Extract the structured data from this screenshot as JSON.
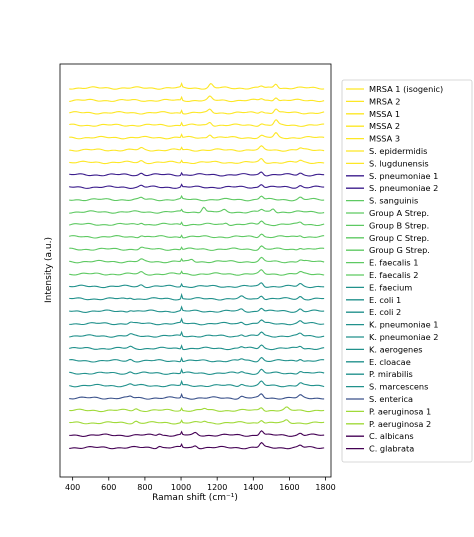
{
  "chart_data": {
    "type": "line",
    "title": "",
    "xlabel": "Raman shift (cm⁻¹)",
    "ylabel": "Intensity (a.u.)",
    "xlim": [
      330,
      1830
    ],
    "xticks": [
      400,
      600,
      800,
      1000,
      1200,
      1400,
      1600,
      1800
    ],
    "ytick_labels": false,
    "grid": false,
    "legend_placement": "right",
    "x_range": [
      381,
      1792
    ],
    "series": [
      {
        "name": "MRSA 1 (isogenic)",
        "color": "#fde725",
        "peaks": [
          [
            1003,
            0.55
          ],
          [
            1165,
            0.65
          ],
          [
            1525,
            0.75
          ],
          [
            1445,
            0.3
          ]
        ]
      },
      {
        "name": "MRSA 2",
        "color": "#fde725",
        "peaks": [
          [
            1003,
            0.5
          ],
          [
            1160,
            0.55
          ],
          [
            1525,
            0.6
          ],
          [
            1445,
            0.3
          ]
        ]
      },
      {
        "name": "MSSA 1",
        "color": "#fde725",
        "peaks": [
          [
            1003,
            0.5
          ],
          [
            1160,
            0.5
          ],
          [
            1525,
            0.7
          ],
          [
            1445,
            0.3
          ]
        ]
      },
      {
        "name": "MSSA 2",
        "color": "#fde725",
        "peaks": [
          [
            1003,
            0.5
          ],
          [
            1160,
            0.55
          ],
          [
            1525,
            0.8
          ],
          [
            1445,
            0.3
          ]
        ]
      },
      {
        "name": "MSSA 3",
        "color": "#fde725",
        "peaks": [
          [
            1003,
            0.5
          ],
          [
            1160,
            0.6
          ],
          [
            1525,
            0.7
          ],
          [
            1445,
            0.3
          ]
        ]
      },
      {
        "name": "S. epidermidis",
        "color": "#fde725",
        "peaks": [
          [
            780,
            0.3
          ],
          [
            1003,
            0.4
          ],
          [
            1445,
            0.5
          ],
          [
            1660,
            0.3
          ]
        ]
      },
      {
        "name": "S. lugdunensis",
        "color": "#fde725",
        "peaks": [
          [
            780,
            0.3
          ],
          [
            1003,
            0.4
          ],
          [
            1445,
            0.55
          ],
          [
            1660,
            0.3
          ]
        ]
      },
      {
        "name": "S. pneumoniae 1",
        "color": "#3b1c8c",
        "peaks": [
          [
            780,
            0.3
          ],
          [
            1003,
            0.4
          ],
          [
            1445,
            0.55
          ],
          [
            1660,
            0.3
          ]
        ]
      },
      {
        "name": "S. pneumoniae 2",
        "color": "#3b1c8c",
        "peaks": [
          [
            780,
            0.3
          ],
          [
            1003,
            0.4
          ],
          [
            1445,
            0.55
          ],
          [
            1660,
            0.3
          ]
        ]
      },
      {
        "name": "S. sanguinis",
        "color": "#5ec962",
        "peaks": [
          [
            780,
            0.3
          ],
          [
            1003,
            0.4
          ],
          [
            1445,
            0.6
          ],
          [
            1660,
            0.35
          ]
        ]
      },
      {
        "name": "Group A Strep.",
        "color": "#5ec962",
        "peaks": [
          [
            1003,
            0.3
          ],
          [
            1125,
            0.9
          ],
          [
            1240,
            0.3
          ],
          [
            1445,
            0.4
          ],
          [
            1510,
            0.6
          ]
        ]
      },
      {
        "name": "Group B Strep.",
        "color": "#5ec962",
        "peaks": [
          [
            780,
            0.35
          ],
          [
            1003,
            0.4
          ],
          [
            1250,
            0.3
          ],
          [
            1445,
            0.6
          ],
          [
            1660,
            0.35
          ]
        ]
      },
      {
        "name": "Group C Strep.",
        "color": "#5ec962",
        "peaks": [
          [
            780,
            0.3
          ],
          [
            1003,
            0.4
          ],
          [
            1445,
            0.55
          ],
          [
            1660,
            0.3
          ]
        ]
      },
      {
        "name": "Group G Strep.",
        "color": "#5ec962",
        "peaks": [
          [
            780,
            0.3
          ],
          [
            1003,
            0.4
          ],
          [
            1445,
            0.55
          ],
          [
            1660,
            0.3
          ]
        ]
      },
      {
        "name": "E. faecalis 1",
        "color": "#5ec962",
        "peaks": [
          [
            780,
            0.3
          ],
          [
            1003,
            0.4
          ],
          [
            1060,
            0.35
          ],
          [
            1445,
            0.55
          ],
          [
            1660,
            0.3
          ]
        ]
      },
      {
        "name": "E. faecalis 2",
        "color": "#5ec962",
        "peaks": [
          [
            780,
            0.3
          ],
          [
            1003,
            0.4
          ],
          [
            1445,
            0.55
          ],
          [
            1660,
            0.3
          ]
        ]
      },
      {
        "name": "E. faecium",
        "color": "#21918c",
        "peaks": [
          [
            780,
            0.3
          ],
          [
            1003,
            0.45
          ],
          [
            1445,
            0.6
          ],
          [
            1660,
            0.4
          ]
        ]
      },
      {
        "name": "E. coli 1",
        "color": "#21918c",
        "peaks": [
          [
            720,
            0.25
          ],
          [
            1003,
            0.7
          ],
          [
            1335,
            0.3
          ],
          [
            1445,
            0.6
          ],
          [
            1660,
            0.4
          ]
        ]
      },
      {
        "name": "E. coli 2",
        "color": "#21918c",
        "peaks": [
          [
            720,
            0.25
          ],
          [
            1003,
            0.6
          ],
          [
            1335,
            0.3
          ],
          [
            1445,
            0.6
          ],
          [
            1660,
            0.4
          ]
        ]
      },
      {
        "name": "K. pneumoniae 1",
        "color": "#21918c",
        "peaks": [
          [
            720,
            0.25
          ],
          [
            1003,
            0.6
          ],
          [
            1335,
            0.3
          ],
          [
            1445,
            0.6
          ],
          [
            1660,
            0.4
          ]
        ]
      },
      {
        "name": "K. pneumoniae 2",
        "color": "#21918c",
        "peaks": [
          [
            720,
            0.25
          ],
          [
            1003,
            0.6
          ],
          [
            1335,
            0.3
          ],
          [
            1445,
            0.6
          ],
          [
            1660,
            0.4
          ]
        ]
      },
      {
        "name": "K. aerogenes",
        "color": "#21918c",
        "peaks": [
          [
            720,
            0.25
          ],
          [
            1003,
            0.6
          ],
          [
            1335,
            0.3
          ],
          [
            1445,
            0.6
          ],
          [
            1660,
            0.4
          ]
        ]
      },
      {
        "name": "E. cloacae",
        "color": "#21918c",
        "peaks": [
          [
            720,
            0.25
          ],
          [
            1003,
            0.6
          ],
          [
            1335,
            0.3
          ],
          [
            1445,
            0.6
          ],
          [
            1660,
            0.4
          ]
        ]
      },
      {
        "name": "P. mirabilis",
        "color": "#21918c",
        "peaks": [
          [
            720,
            0.25
          ],
          [
            1003,
            0.6
          ],
          [
            1335,
            0.3
          ],
          [
            1445,
            0.6
          ],
          [
            1660,
            0.4
          ]
        ]
      },
      {
        "name": "S. marcescens",
        "color": "#21918c",
        "peaks": [
          [
            720,
            0.25
          ],
          [
            1003,
            0.6
          ],
          [
            1335,
            0.3
          ],
          [
            1445,
            0.6
          ],
          [
            1660,
            0.4
          ]
        ]
      },
      {
        "name": "S. enterica",
        "color": "#3b528b",
        "peaks": [
          [
            720,
            0.25
          ],
          [
            1003,
            0.55
          ],
          [
            1335,
            0.3
          ],
          [
            1445,
            0.6
          ],
          [
            1660,
            0.4
          ]
        ]
      },
      {
        "name": "P. aeruginosa 1",
        "color": "#a0da39",
        "peaks": [
          [
            750,
            0.3
          ],
          [
            1003,
            0.4
          ],
          [
            1130,
            0.3
          ],
          [
            1445,
            0.55
          ],
          [
            1585,
            0.4
          ]
        ]
      },
      {
        "name": "P. aeruginosa 2",
        "color": "#a0da39",
        "peaks": [
          [
            750,
            0.3
          ],
          [
            1003,
            0.4
          ],
          [
            1130,
            0.3
          ],
          [
            1445,
            0.55
          ],
          [
            1585,
            0.4
          ]
        ]
      },
      {
        "name": "C. albicans",
        "color": "#440154",
        "peaks": [
          [
            880,
            0.3
          ],
          [
            1003,
            0.45
          ],
          [
            1080,
            0.35
          ],
          [
            1445,
            0.8
          ],
          [
            1660,
            0.35
          ]
        ]
      },
      {
        "name": "C. glabrata",
        "color": "#440154",
        "peaks": [
          [
            880,
            0.3
          ],
          [
            1003,
            0.45
          ],
          [
            1080,
            0.35
          ],
          [
            1445,
            0.75
          ],
          [
            1660,
            0.35
          ]
        ]
      }
    ]
  }
}
